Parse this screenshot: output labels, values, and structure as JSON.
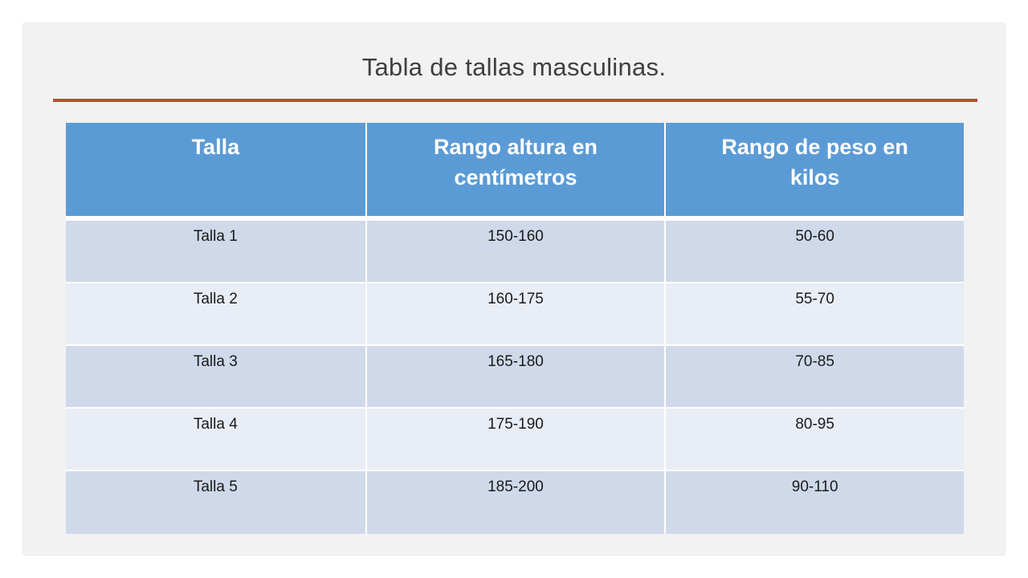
{
  "slide": {
    "title": "Tabla de tallas masculinas."
  },
  "table": {
    "headers": [
      "Talla",
      "Rango altura en\ncentímetros",
      "Rango de peso en\nkilos"
    ],
    "rows": [
      [
        "Talla 1",
        "150-160",
        "50-60"
      ],
      [
        "Talla 2",
        "160-175",
        "55-70"
      ],
      [
        "Talla 3",
        "165-180",
        "70-85"
      ],
      [
        "Talla 4",
        "175-190",
        "80-95"
      ],
      [
        "Talla 5",
        "185-200",
        "90-110"
      ]
    ]
  },
  "colors": {
    "accent_rule": "#C04A2E",
    "header_bg": "#5B9BD5",
    "header_text": "#FFFFFF",
    "row_band_dark": "#CFD9EA",
    "row_band_light": "#E9EDF5",
    "body_text": "#1A1A1A",
    "slide_bg": "#F2F2F3",
    "title_text": "#3F3F3F"
  }
}
